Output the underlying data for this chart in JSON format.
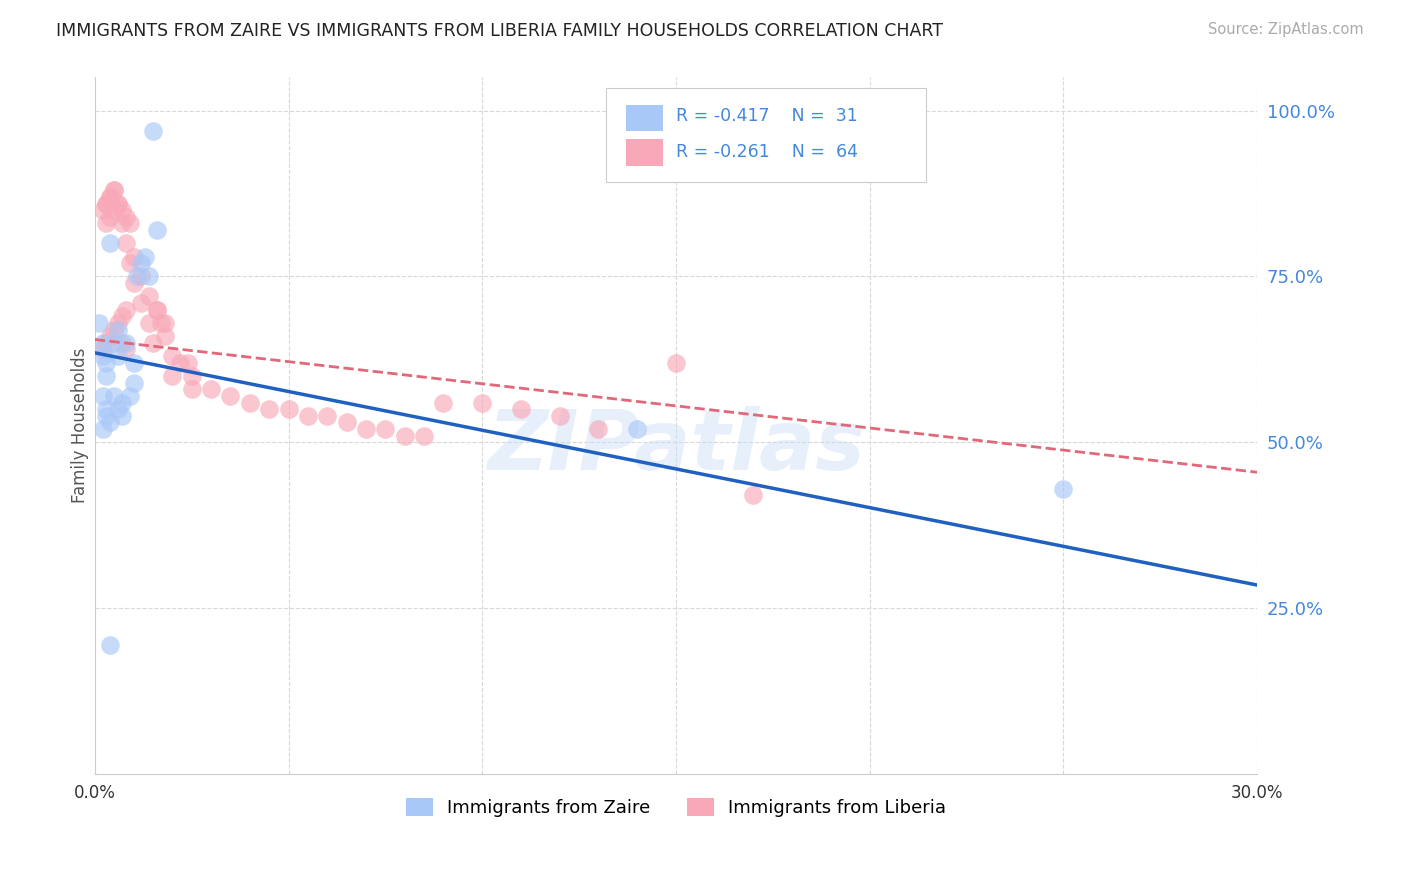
{
  "title": "IMMIGRANTS FROM ZAIRE VS IMMIGRANTS FROM LIBERIA FAMILY HOUSEHOLDS CORRELATION CHART",
  "source": "Source: ZipAtlas.com",
  "ylabel": "Family Households",
  "xmin": 0.0,
  "xmax": 0.3,
  "ymin": 0.0,
  "ymax": 1.05,
  "xticks": [
    0.0,
    0.05,
    0.1,
    0.15,
    0.2,
    0.25,
    0.3
  ],
  "xticklabels": [
    "0.0%",
    "",
    "",
    "",
    "",
    "",
    "30.0%"
  ],
  "yticks_right": [
    1.0,
    0.75,
    0.5,
    0.25
  ],
  "yticklabels_right": [
    "100.0%",
    "75.0%",
    "50.0%",
    "25.0%"
  ],
  "zaire_color": "#a8c8f8",
  "liberia_color": "#f8a8b8",
  "zaire_line_color": "#2060c0",
  "liberia_line_color": "#e06878",
  "watermark": "ZIPatlas",
  "background_color": "#ffffff",
  "grid_color": "#d8d8d8",
  "tick_color": "#4488dd",
  "zaire_scatter_x": [
    0.015,
    0.016,
    0.004,
    0.003,
    0.005,
    0.006,
    0.002,
    0.003,
    0.002,
    0.006,
    0.008,
    0.01,
    0.011,
    0.012,
    0.013,
    0.014,
    0.005,
    0.007,
    0.009,
    0.01,
    0.003,
    0.004,
    0.006,
    0.007,
    0.002,
    0.003,
    0.004,
    0.14,
    0.25,
    0.002,
    0.001
  ],
  "zaire_scatter_y": [
    0.97,
    0.82,
    0.8,
    0.62,
    0.65,
    0.67,
    0.63,
    0.6,
    0.57,
    0.63,
    0.65,
    0.62,
    0.75,
    0.77,
    0.78,
    0.75,
    0.57,
    0.54,
    0.57,
    0.59,
    0.55,
    0.53,
    0.55,
    0.56,
    0.52,
    0.54,
    0.195,
    0.52,
    0.43,
    0.65,
    0.68
  ],
  "liberia_scatter_x": [
    0.002,
    0.003,
    0.004,
    0.005,
    0.006,
    0.007,
    0.008,
    0.003,
    0.004,
    0.005,
    0.006,
    0.007,
    0.008,
    0.009,
    0.01,
    0.012,
    0.014,
    0.015,
    0.016,
    0.017,
    0.018,
    0.02,
    0.022,
    0.024,
    0.025,
    0.03,
    0.035,
    0.04,
    0.045,
    0.05,
    0.055,
    0.06,
    0.065,
    0.07,
    0.075,
    0.08,
    0.085,
    0.09,
    0.1,
    0.11,
    0.003,
    0.004,
    0.005,
    0.006,
    0.007,
    0.008,
    0.009,
    0.01,
    0.012,
    0.014,
    0.016,
    0.018,
    0.02,
    0.025,
    0.12,
    0.13,
    0.15,
    0.002,
    0.003,
    0.004,
    0.005,
    0.007,
    0.008,
    0.17
  ],
  "liberia_scatter_y": [
    0.64,
    0.65,
    0.66,
    0.67,
    0.68,
    0.69,
    0.7,
    0.83,
    0.84,
    0.85,
    0.86,
    0.83,
    0.8,
    0.77,
    0.74,
    0.71,
    0.68,
    0.65,
    0.7,
    0.68,
    0.66,
    0.63,
    0.62,
    0.62,
    0.6,
    0.58,
    0.57,
    0.56,
    0.55,
    0.55,
    0.54,
    0.54,
    0.53,
    0.52,
    0.52,
    0.51,
    0.51,
    0.56,
    0.56,
    0.55,
    0.86,
    0.87,
    0.88,
    0.86,
    0.85,
    0.84,
    0.83,
    0.78,
    0.75,
    0.72,
    0.7,
    0.68,
    0.6,
    0.58,
    0.54,
    0.52,
    0.62,
    0.85,
    0.86,
    0.87,
    0.88,
    0.65,
    0.64,
    0.42
  ],
  "zaire_trend_x0": 0.0,
  "zaire_trend_y0": 0.635,
  "zaire_trend_x1": 0.3,
  "zaire_trend_y1": 0.285,
  "liberia_trend_x0": 0.0,
  "liberia_trend_y0": 0.655,
  "liberia_trend_x1": 0.3,
  "liberia_trend_y1": 0.455
}
